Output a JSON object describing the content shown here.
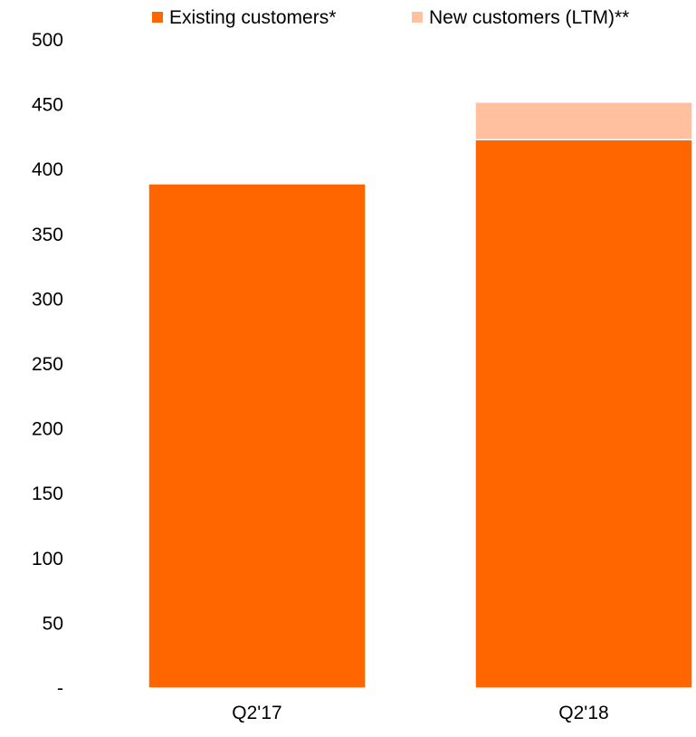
{
  "chart_data": {
    "type": "bar",
    "stacked": true,
    "categories": [
      "Q2'17",
      "Q2'18"
    ],
    "series": [
      {
        "name": "Existing customers*",
        "color": "#ff6600",
        "values": [
          389,
          423
        ]
      },
      {
        "name": "New customers (LTM)**",
        "color": "#ffc09f",
        "values": [
          0,
          29
        ]
      }
    ],
    "yticks": [
      {
        "value": 0,
        "label": "-"
      },
      {
        "value": 50,
        "label": "50"
      },
      {
        "value": 100,
        "label": "100"
      },
      {
        "value": 150,
        "label": "150"
      },
      {
        "value": 200,
        "label": "200"
      },
      {
        "value": 250,
        "label": "250"
      },
      {
        "value": 300,
        "label": "300"
      },
      {
        "value": 350,
        "label": "350"
      },
      {
        "value": 400,
        "label": "400"
      },
      {
        "value": 450,
        "label": "450"
      },
      {
        "value": 500,
        "label": "500"
      }
    ],
    "ylim": [
      0,
      500
    ],
    "grid": false,
    "legend_position": "top"
  }
}
